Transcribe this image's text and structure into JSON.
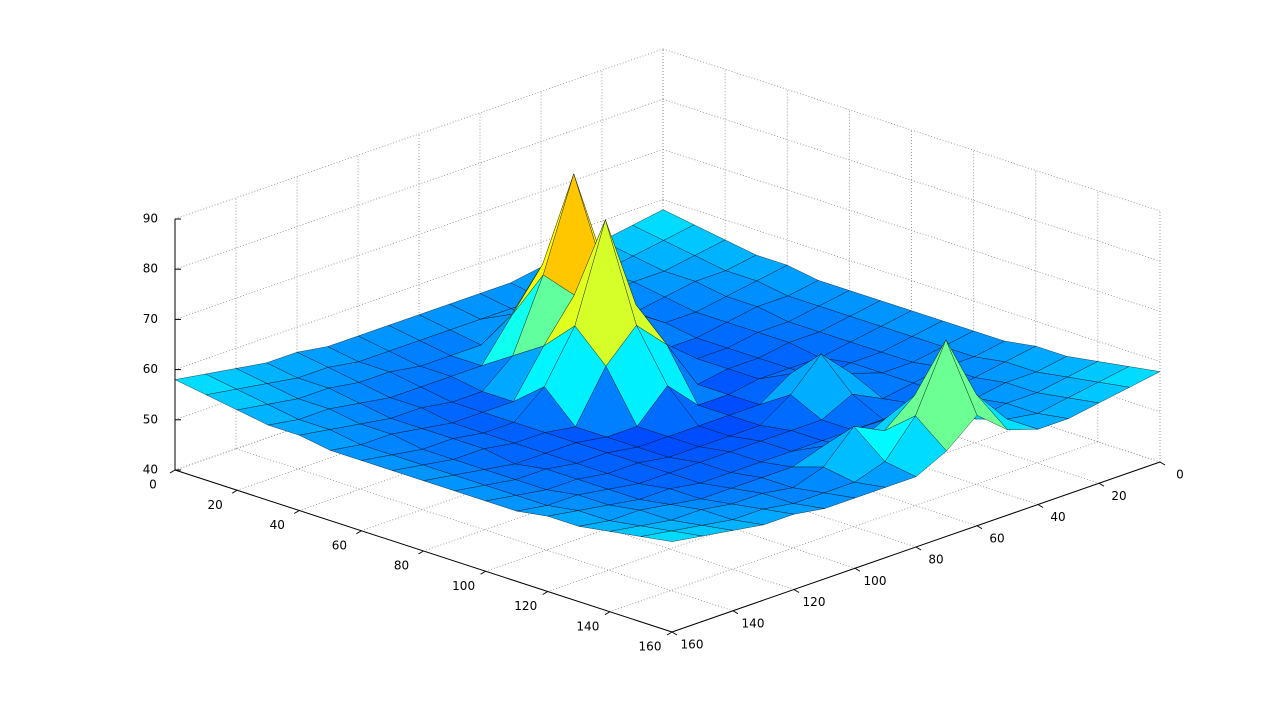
{
  "chart_data": {
    "type": "surface",
    "x": [
      0,
      10,
      20,
      30,
      40,
      50,
      60,
      70,
      80,
      90,
      100,
      110,
      120,
      130,
      140,
      150,
      160
    ],
    "y": [
      0,
      10,
      20,
      30,
      40,
      50,
      60,
      70,
      80,
      90,
      100,
      110,
      120,
      130,
      140,
      150,
      160
    ],
    "z": [
      [
        58,
        57,
        56,
        55,
        55,
        54,
        54,
        54,
        54,
        54,
        54,
        54,
        55,
        55,
        56,
        57,
        58
      ],
      [
        57,
        56,
        55,
        54,
        54,
        53,
        53,
        53,
        53,
        53,
        53,
        53,
        54,
        54,
        55,
        56,
        57
      ],
      [
        56,
        55,
        54,
        54,
        53,
        53,
        52,
        56,
        52,
        52,
        52,
        53,
        53,
        54,
        54,
        55,
        56
      ],
      [
        55,
        54,
        54,
        53,
        52,
        52,
        60,
        68,
        60,
        52,
        52,
        52,
        52,
        53,
        54,
        54,
        55
      ],
      [
        55,
        54,
        53,
        52,
        52,
        56,
        68,
        88,
        70,
        56,
        51,
        51,
        52,
        52,
        53,
        54,
        55
      ],
      [
        54,
        53,
        53,
        52,
        51,
        51,
        60,
        70,
        68,
        60,
        51,
        51,
        51,
        52,
        53,
        53,
        54
      ],
      [
        54,
        53,
        52,
        52,
        51,
        51,
        56,
        66,
        85,
        66,
        56,
        51,
        51,
        52,
        52,
        53,
        54
      ],
      [
        54,
        53,
        52,
        52,
        51,
        51,
        50,
        60,
        66,
        60,
        50,
        51,
        51,
        52,
        52,
        53,
        54
      ],
      [
        54,
        53,
        52,
        51,
        51,
        51,
        50,
        50,
        56,
        50,
        50,
        51,
        51,
        51,
        52,
        53,
        54
      ],
      [
        54,
        53,
        52,
        52,
        51,
        54,
        50,
        50,
        50,
        50,
        50,
        51,
        51,
        52,
        52,
        53,
        54
      ],
      [
        54,
        53,
        52,
        52,
        54,
        60,
        54,
        50,
        50,
        50,
        50,
        51,
        51,
        52,
        52,
        53,
        54
      ],
      [
        54,
        53,
        53,
        52,
        51,
        54,
        51,
        51,
        51,
        51,
        51,
        51,
        51,
        52,
        53,
        53,
        54
      ],
      [
        55,
        54,
        53,
        52,
        52,
        51,
        51,
        51,
        51,
        51,
        51,
        51,
        52,
        52,
        53,
        54,
        55
      ],
      [
        55,
        54,
        54,
        53,
        52,
        52,
        55,
        52,
        54,
        52,
        52,
        52,
        52,
        53,
        54,
        54,
        55
      ],
      [
        56,
        55,
        54,
        54,
        53,
        57,
        62,
        57,
        60,
        54,
        52,
        53,
        53,
        54,
        54,
        55,
        56
      ],
      [
        57,
        56,
        55,
        54,
        55,
        62,
        75,
        62,
        55,
        53,
        53,
        53,
        54,
        54,
        55,
        56,
        57
      ],
      [
        58,
        57,
        56,
        55,
        55,
        57,
        62,
        57,
        54,
        54,
        54,
        54,
        55,
        55,
        56,
        57,
        58
      ]
    ],
    "xlim": [
      0,
      160
    ],
    "ylim": [
      0,
      160
    ],
    "zlim": [
      40,
      90
    ],
    "xticks": [
      0,
      20,
      40,
      60,
      80,
      100,
      120,
      140,
      160
    ],
    "yticks": [
      0,
      20,
      40,
      60,
      80,
      100,
      120,
      140,
      160
    ],
    "zticks": [
      40,
      50,
      60,
      70,
      80,
      90
    ],
    "grid": true,
    "colormap": "jet"
  }
}
